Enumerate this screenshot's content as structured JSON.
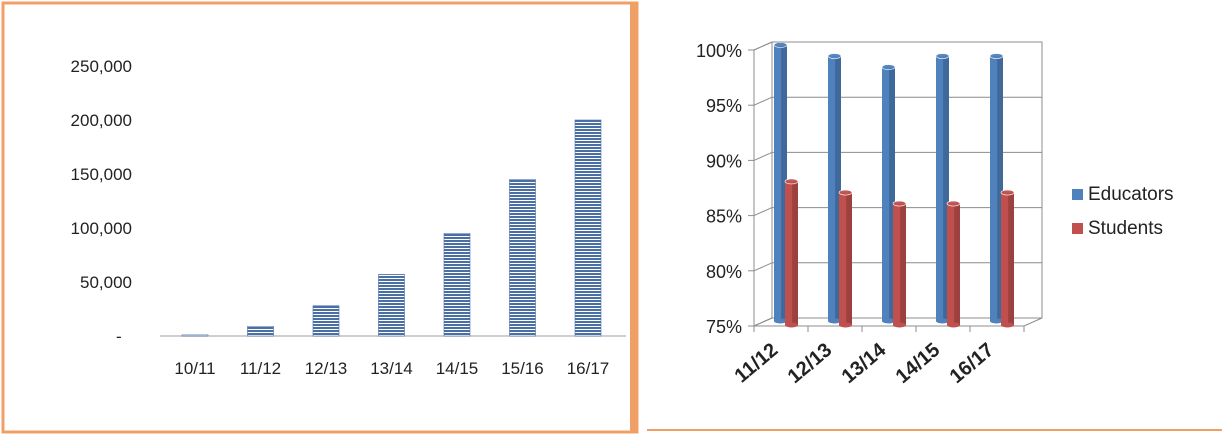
{
  "chart_data": [
    {
      "type": "bar",
      "title": "",
      "xlabel": "",
      "ylabel": "",
      "categories": [
        "10/11",
        "11/12",
        "12/13",
        "13/14",
        "14/15",
        "15/16",
        "16/17"
      ],
      "values": [
        1000,
        9000,
        28000,
        57000,
        95000,
        145000,
        200000
      ],
      "ylim": [
        0,
        250000
      ],
      "yticks": [
        "-",
        "50,000",
        "100,000",
        "150,000",
        "200,000",
        "250,000"
      ],
      "grid": false,
      "bar_color": "#4a6fa5",
      "border_color": "#f0a066"
    },
    {
      "type": "bar",
      "title": "",
      "xlabel": "",
      "ylabel": "",
      "categories": [
        "11/12",
        "12/13",
        "13/14",
        "14/15",
        "16/17"
      ],
      "series": [
        {
          "name": "Educators",
          "values": [
            100,
            99,
            98,
            99,
            99
          ],
          "color": "#4f81bd"
        },
        {
          "name": "Students",
          "values": [
            88,
            87,
            86,
            86,
            87
          ],
          "color": "#c0504d"
        }
      ],
      "ylim": [
        75,
        100
      ],
      "yticks": [
        "75%",
        "80%",
        "85%",
        "90%",
        "95%",
        "100%"
      ],
      "grid": true,
      "legend": "right"
    }
  ]
}
